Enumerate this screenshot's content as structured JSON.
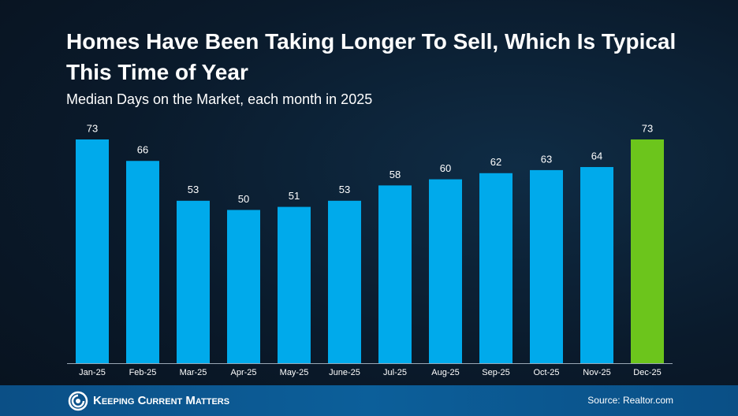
{
  "chart_data": {
    "type": "bar",
    "title": "Homes Have Been Taking Longer To Sell, Which Is Typical This Time of Year",
    "subtitle": "Median Days on the Market, each month in 2025",
    "categories": [
      "Jan-25",
      "Feb-25",
      "Mar-25",
      "Apr-25",
      "May-25",
      "June-25",
      "Jul-25",
      "Aug-25",
      "Sep-25",
      "Oct-25",
      "Nov-25",
      "Dec-25"
    ],
    "values": [
      73,
      66,
      53,
      50,
      51,
      53,
      58,
      60,
      62,
      63,
      64,
      73
    ],
    "colors": [
      "#00aaeb",
      "#00aaeb",
      "#00aaeb",
      "#00aaeb",
      "#00aaeb",
      "#00aaeb",
      "#00aaeb",
      "#00aaeb",
      "#00aaeb",
      "#00aaeb",
      "#00aaeb",
      "#6cc51c"
    ]
  },
  "footer": {
    "brand": "Keeping Current Matters",
    "source": "Source: Realtor.com"
  }
}
